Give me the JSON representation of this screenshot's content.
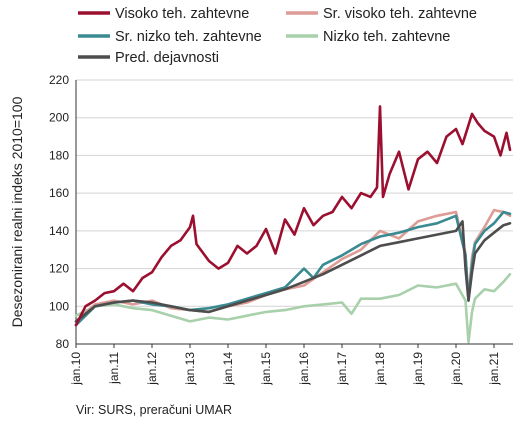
{
  "chart_data": {
    "type": "line",
    "ylabel": "Desezonirani realni indeks 2010=100",
    "ylim": [
      80,
      220
    ],
    "yticks": [
      80,
      100,
      120,
      140,
      160,
      180,
      200,
      220
    ],
    "xlim": [
      2010,
      2021.5
    ],
    "xticks": [
      "jan.10",
      "jan.11",
      "jan.12",
      "jan.13",
      "jan.14",
      "jan.15",
      "jan.16",
      "jan.17",
      "jan.18",
      "jan.19",
      "jan.20",
      "jan.21"
    ],
    "grid": "horizontal",
    "legend": "top",
    "series": [
      {
        "name": "Visoko teh. zahtevne",
        "color": "#9b1030",
        "x": [
          2010.0,
          2010.25,
          2010.5,
          2010.75,
          2011.0,
          2011.25,
          2011.5,
          2011.75,
          2012.0,
          2012.25,
          2012.5,
          2012.75,
          2013.0,
          2013.08,
          2013.17,
          2013.5,
          2013.75,
          2014.0,
          2014.25,
          2014.5,
          2014.75,
          2015.0,
          2015.25,
          2015.5,
          2015.75,
          2016.0,
          2016.25,
          2016.5,
          2016.75,
          2017.0,
          2017.25,
          2017.5,
          2017.75,
          2017.92,
          2018.0,
          2018.08,
          2018.25,
          2018.5,
          2018.75,
          2019.0,
          2019.25,
          2019.5,
          2019.75,
          2020.0,
          2020.17,
          2020.25,
          2020.42,
          2020.58,
          2020.75,
          2021.0,
          2021.17,
          2021.33,
          2021.42
        ],
        "values": [
          90,
          100,
          103,
          107,
          108,
          112,
          108,
          115,
          118,
          126,
          132,
          135,
          142,
          148,
          133,
          124,
          120,
          123,
          132,
          128,
          132,
          141,
          128,
          146,
          138,
          152,
          143,
          148,
          150,
          158,
          152,
          160,
          158,
          163,
          206,
          158,
          170,
          182,
          162,
          178,
          182,
          176,
          190,
          194,
          186,
          191,
          202,
          197,
          193,
          190,
          180,
          192,
          183
        ]
      },
      {
        "name": "Sr. visoko teh. zahtevne",
        "color": "#dd9c95",
        "x": [
          2010.0,
          2010.5,
          2011.0,
          2011.5,
          2012.0,
          2012.5,
          2013.0,
          2013.5,
          2014.0,
          2014.5,
          2015.0,
          2015.5,
          2016.0,
          2016.5,
          2017.0,
          2017.5,
          2018.0,
          2018.5,
          2019.0,
          2019.5,
          2020.0,
          2020.25,
          2020.33,
          2020.42,
          2020.5,
          2020.75,
          2021.0,
          2021.25,
          2021.42
        ],
        "values": [
          92,
          101,
          103,
          101,
          103,
          99,
          98,
          97,
          100,
          102,
          106,
          109,
          111,
          118,
          125,
          130,
          140,
          136,
          145,
          148,
          150,
          128,
          104,
          126,
          134,
          142,
          151,
          150,
          148
        ]
      },
      {
        "name": "Sr. nizko teh. zahtevne",
        "color": "#3a8a92",
        "x": [
          2010.0,
          2010.5,
          2011.0,
          2011.5,
          2012.0,
          2012.5,
          2013.0,
          2013.5,
          2014.0,
          2014.5,
          2015.0,
          2015.5,
          2016.0,
          2016.25,
          2016.5,
          2017.0,
          2017.5,
          2018.0,
          2018.5,
          2019.0,
          2019.5,
          2020.0,
          2020.25,
          2020.33,
          2020.42,
          2020.5,
          2020.75,
          2021.0,
          2021.25,
          2021.42
        ],
        "values": [
          90,
          100,
          102,
          103,
          101,
          100,
          98,
          99,
          101,
          104,
          107,
          110,
          120,
          115,
          122,
          127,
          133,
          137,
          139,
          142,
          144,
          148,
          127,
          103,
          122,
          133,
          140,
          144,
          150,
          149
        ]
      },
      {
        "name": "Nizko teh. zahtevne",
        "color": "#a8d0aa",
        "x": [
          2010.0,
          2010.5,
          2011.0,
          2011.5,
          2012.0,
          2012.5,
          2013.0,
          2013.5,
          2014.0,
          2014.5,
          2015.0,
          2015.5,
          2016.0,
          2016.5,
          2017.0,
          2017.25,
          2017.5,
          2018.0,
          2018.5,
          2019.0,
          2019.5,
          2020.0,
          2020.25,
          2020.33,
          2020.42,
          2020.5,
          2020.75,
          2021.0,
          2021.25,
          2021.42
        ],
        "values": [
          95,
          100,
          101,
          99,
          98,
          95,
          92,
          94,
          93,
          95,
          97,
          98,
          100,
          101,
          102,
          96,
          104,
          104,
          106,
          111,
          110,
          112,
          103,
          81,
          97,
          104,
          109,
          108,
          113,
          117
        ]
      },
      {
        "name": "Pred. dejavnosti",
        "color": "#4d4d4d",
        "x": [
          2010.0,
          2010.5,
          2011.0,
          2011.5,
          2012.0,
          2012.5,
          2013.0,
          2013.5,
          2014.0,
          2014.5,
          2015.0,
          2015.5,
          2016.0,
          2016.5,
          2017.0,
          2017.5,
          2018.0,
          2018.5,
          2019.0,
          2019.5,
          2020.0,
          2020.17,
          2020.25,
          2020.33,
          2020.42,
          2020.5,
          2020.75,
          2021.0,
          2021.25,
          2021.42
        ],
        "values": [
          92,
          100,
          102,
          103,
          102,
          100,
          98,
          97,
          100,
          103,
          106,
          109,
          113,
          117,
          122,
          127,
          132,
          134,
          136,
          138,
          140,
          145,
          120,
          103,
          118,
          128,
          135,
          139,
          143,
          144
        ]
      }
    ]
  },
  "source": "Vir: SURS, preračuni UMAR"
}
